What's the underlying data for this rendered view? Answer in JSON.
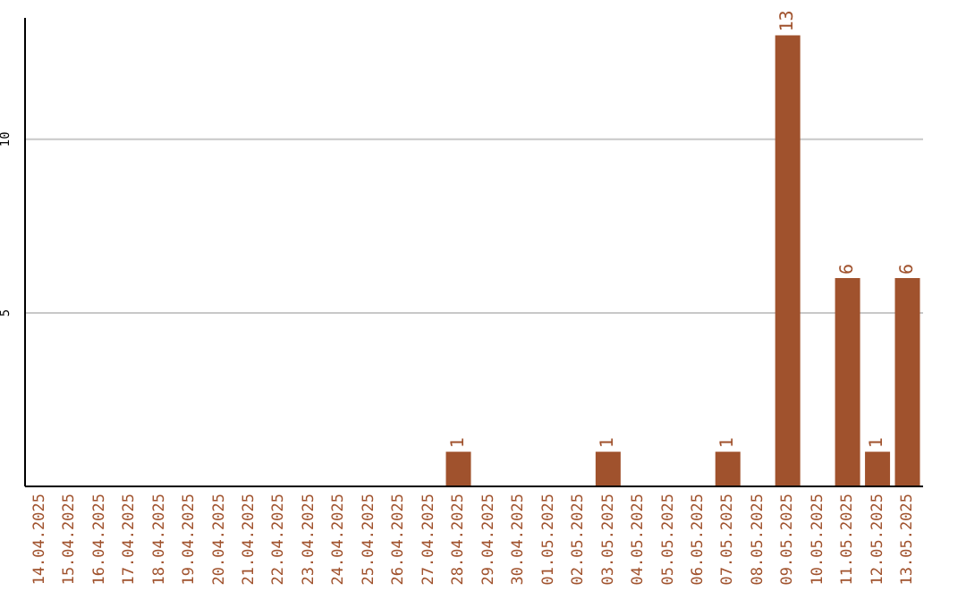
{
  "chart_data": {
    "type": "bar",
    "categories": [
      "14.04.2025",
      "15.04.2025",
      "16.04.2025",
      "17.04.2025",
      "18.04.2025",
      "19.04.2025",
      "20.04.2025",
      "21.04.2025",
      "22.04.2025",
      "23.04.2025",
      "24.04.2025",
      "25.04.2025",
      "26.04.2025",
      "27.04.2025",
      "28.04.2025",
      "29.04.2025",
      "30.04.2025",
      "01.05.2025",
      "02.05.2025",
      "03.05.2025",
      "04.05.2025",
      "05.05.2025",
      "06.05.2025",
      "07.05.2025",
      "08.05.2025",
      "09.05.2025",
      "10.05.2025",
      "11.05.2025",
      "12.05.2025",
      "13.05.2025"
    ],
    "values": [
      0,
      0,
      0,
      0,
      0,
      0,
      0,
      0,
      0,
      0,
      0,
      0,
      0,
      0,
      1,
      0,
      0,
      0,
      0,
      1,
      0,
      0,
      0,
      1,
      0,
      13,
      0,
      6,
      1,
      6
    ],
    "value_labels": [
      null,
      null,
      null,
      null,
      null,
      null,
      null,
      null,
      null,
      null,
      null,
      null,
      null,
      null,
      "1",
      null,
      null,
      null,
      null,
      "1",
      null,
      null,
      null,
      "1",
      null,
      "13",
      null,
      "6",
      "1",
      "6"
    ],
    "color": "#a0522d",
    "ylim": [
      0,
      13.5
    ],
    "yticks": [
      5,
      10
    ],
    "grid": "y"
  }
}
